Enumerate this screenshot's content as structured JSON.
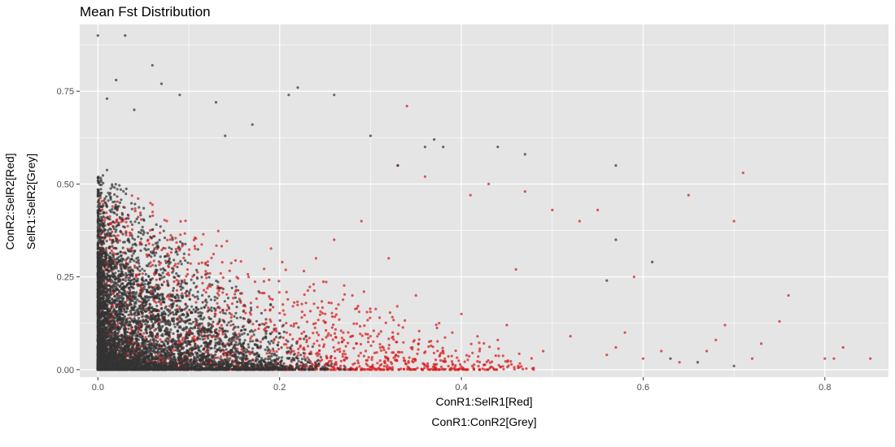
{
  "chart_data": {
    "type": "scatter",
    "title": "Mean Fst Distribution",
    "xlabel": [
      "ConR1:SelR1[Red]",
      "ConR1:ConR2[Grey]"
    ],
    "ylabel": [
      "ConR2:SelR2[Red]",
      "SelR1:SelR2[Grey]"
    ],
    "xlim": [
      -0.02,
      0.87
    ],
    "ylim": [
      -0.02,
      0.93
    ],
    "x_ticks": [
      0.0,
      0.2,
      0.4,
      0.6,
      0.8
    ],
    "x_tick_labels": [
      "0.0",
      "0.2",
      "0.4",
      "0.6",
      "0.8"
    ],
    "y_ticks": [
      0.0,
      0.25,
      0.5,
      0.75
    ],
    "y_tick_labels": [
      "0.00",
      "0.25",
      "0.50",
      "0.75"
    ],
    "grid": true,
    "panel_background": "#e5e5e5",
    "grid_color": "#ffffff",
    "series": [
      {
        "color": "#d7191c",
        "points": [
          [
            0.85,
            0.03
          ],
          [
            0.82,
            0.06
          ],
          [
            0.81,
            0.03
          ],
          [
            0.8,
            0.03
          ],
          [
            0.76,
            0.2
          ],
          [
            0.71,
            0.53
          ],
          [
            0.7,
            0.4
          ],
          [
            0.75,
            0.13
          ],
          [
            0.73,
            0.07
          ],
          [
            0.72,
            0.03
          ],
          [
            0.69,
            0.12
          ],
          [
            0.68,
            0.08
          ],
          [
            0.67,
            0.05
          ],
          [
            0.65,
            0.47
          ],
          [
            0.64,
            0.02
          ],
          [
            0.62,
            0.05
          ],
          [
            0.6,
            0.03
          ],
          [
            0.59,
            0.25
          ],
          [
            0.58,
            0.1
          ],
          [
            0.57,
            0.06
          ],
          [
            0.56,
            0.04
          ],
          [
            0.55,
            0.43
          ],
          [
            0.53,
            0.4
          ],
          [
            0.52,
            0.09
          ],
          [
            0.5,
            0.43
          ],
          [
            0.49,
            0.05
          ],
          [
            0.47,
            0.48
          ],
          [
            0.46,
            0.27
          ],
          [
            0.45,
            0.12
          ],
          [
            0.44,
            0.08
          ],
          [
            0.43,
            0.5
          ],
          [
            0.42,
            0.05
          ],
          [
            0.41,
            0.47
          ],
          [
            0.4,
            0.15
          ],
          [
            0.39,
            0.1
          ],
          [
            0.38,
            0.05
          ],
          [
            0.36,
            0.52
          ],
          [
            0.35,
            0.2
          ],
          [
            0.34,
            0.71
          ],
          [
            0.33,
            0.55
          ],
          [
            0.32,
            0.3
          ],
          [
            0.31,
            0.14
          ],
          [
            0.3,
            0.09
          ],
          [
            0.29,
            0.4
          ],
          [
            0.28,
            0.2
          ],
          [
            0.27,
            0.1
          ],
          [
            0.26,
            0.35
          ],
          [
            0.25,
            0.15
          ],
          [
            0.24,
            0.3
          ],
          [
            0.23,
            0.08
          ]
        ],
        "dense_region": {
          "x_max": 0.48,
          "y_max": 0.48,
          "count": 2800
        }
      },
      {
        "color": "#333333",
        "points": [
          [
            0.0,
            0.9
          ],
          [
            0.03,
            0.9
          ],
          [
            0.06,
            0.82
          ],
          [
            0.02,
            0.78
          ],
          [
            0.07,
            0.77
          ],
          [
            0.22,
            0.76
          ],
          [
            0.26,
            0.74
          ],
          [
            0.21,
            0.74
          ],
          [
            0.09,
            0.74
          ],
          [
            0.13,
            0.72
          ],
          [
            0.01,
            0.73
          ],
          [
            0.04,
            0.7
          ],
          [
            0.17,
            0.66
          ],
          [
            0.14,
            0.63
          ],
          [
            0.3,
            0.63
          ],
          [
            0.37,
            0.62
          ],
          [
            0.36,
            0.6
          ],
          [
            0.33,
            0.55
          ],
          [
            0.38,
            0.6
          ],
          [
            0.57,
            0.55
          ],
          [
            0.47,
            0.58
          ],
          [
            0.44,
            0.6
          ],
          [
            0.61,
            0.29
          ],
          [
            0.57,
            0.35
          ],
          [
            0.56,
            0.24
          ],
          [
            0.63,
            0.03
          ],
          [
            0.66,
            0.02
          ],
          [
            0.7,
            0.01
          ]
        ],
        "dense_region": {
          "x_max": 0.3,
          "y_max": 0.6,
          "count": 5200
        }
      }
    ]
  }
}
